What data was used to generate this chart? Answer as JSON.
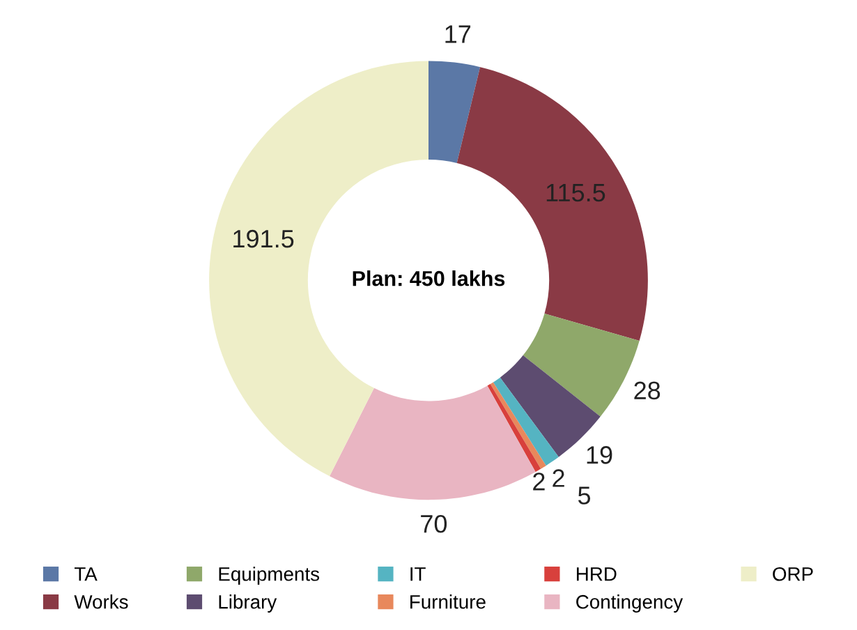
{
  "chart_data": {
    "type": "donut",
    "title": "Plan: 450 lakhs",
    "categories": [
      "TA",
      "Works",
      "Equipments",
      "Library",
      "IT",
      "Furniture",
      "HRD",
      "Contingency",
      "ORP"
    ],
    "values": [
      17,
      115.5,
      28,
      19,
      5,
      2,
      2,
      70,
      191.5
    ],
    "colors": [
      "#5b78a6",
      "#8a3a45",
      "#8fa86a",
      "#5d4c70",
      "#55b4c2",
      "#e8885c",
      "#d8403c",
      "#e9b5c2",
      "#eeeec8"
    ],
    "data_labels": true,
    "legend": "bottom"
  }
}
